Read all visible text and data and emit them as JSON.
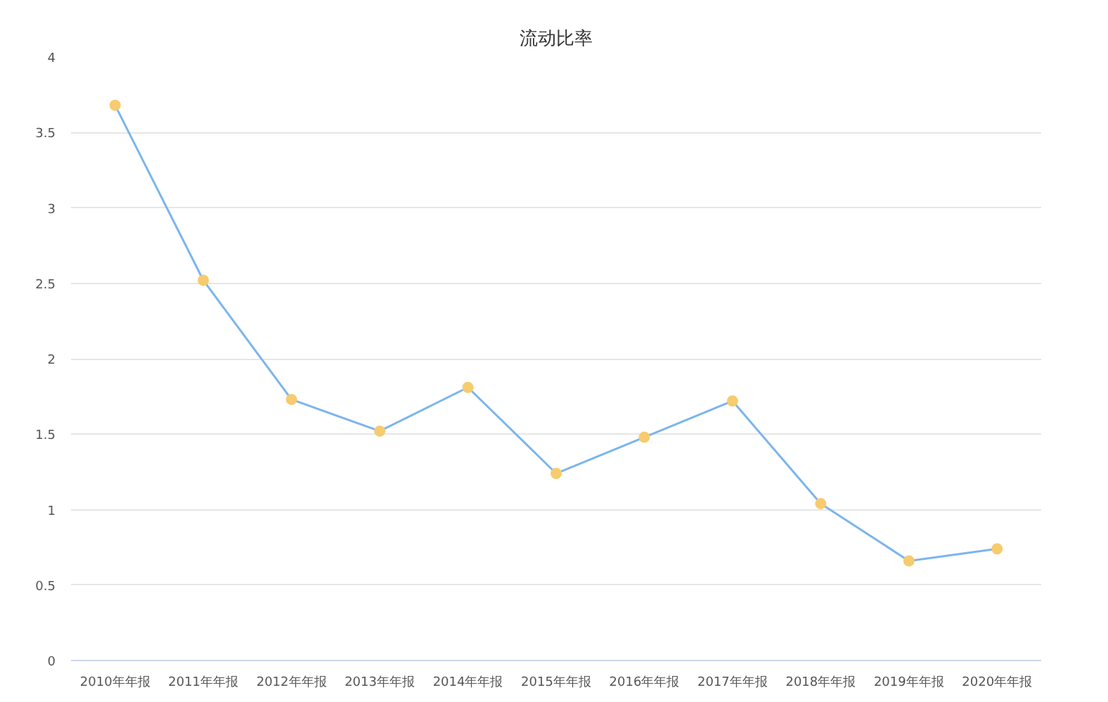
{
  "chart_data": {
    "type": "line",
    "title": "流动比率",
    "categories": [
      "2010年年报",
      "2011年年报",
      "2012年年报",
      "2013年年报",
      "2014年年报",
      "2015年年报",
      "2016年年报",
      "2017年年报",
      "2018年年报",
      "2019年年报",
      "2020年年报"
    ],
    "series": [
      {
        "color": "#7cb5ec",
        "colors": [
          "#f7cb6f",
          "#f7cb6f",
          "#f7cb6f",
          "#f7cb6f",
          "#f7cb6f",
          "#f7cb6f",
          "#f7cb6f",
          "#f7cb6f",
          "#f7cb6f",
          "#f7cb6f",
          "#f7cb6f"
        ],
        "values": [
          3.68,
          2.52,
          1.73,
          1.52,
          1.81,
          1.24,
          1.48,
          1.72,
          1.04,
          0.66,
          0.74
        ]
      }
    ],
    "ylim": [
      0,
      4
    ],
    "yticks": [
      0,
      0.5,
      1,
      1.5,
      2,
      2.5,
      3,
      3.5,
      4
    ],
    "grid": "y",
    "marker": "circle",
    "line_style": "solid"
  }
}
